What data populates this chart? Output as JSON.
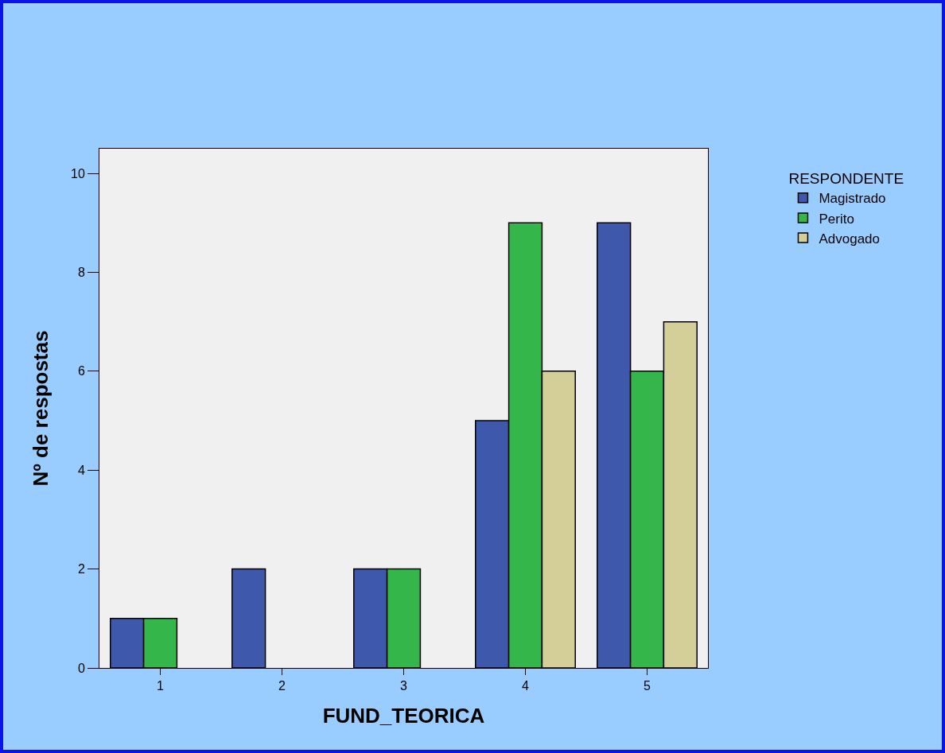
{
  "chart_data": {
    "type": "bar",
    "xlabel": "FUND_TEORICA",
    "ylabel": "Nº de respostas",
    "legend_title": "RESPONDENTE",
    "categories": [
      "1",
      "2",
      "3",
      "4",
      "5"
    ],
    "series": [
      {
        "name": "Magistrado",
        "color": "#3e58ac",
        "values": [
          1,
          2,
          2,
          5,
          9
        ]
      },
      {
        "name": "Perito",
        "color": "#34b64a",
        "values": [
          1,
          null,
          2,
          9,
          6
        ]
      },
      {
        "name": "Advogado",
        "color": "#d4cf99",
        "values": [
          null,
          null,
          null,
          6,
          7
        ]
      }
    ],
    "ylim": [
      0,
      10.5
    ],
    "yticks": [
      0,
      2,
      4,
      6,
      8,
      10
    ],
    "grid": false,
    "legend": "top right"
  }
}
